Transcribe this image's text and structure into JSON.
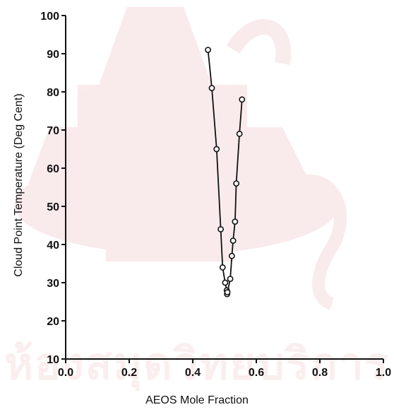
{
  "watermark": {
    "text": "ห้องสมุดวิทยบริการ"
  },
  "chart_data": {
    "type": "line",
    "title": "",
    "xlabel": "AEOS Mole Fraction",
    "ylabel": "Cloud Point Temperature (Deg Cent)",
    "xlim": [
      0.0,
      1.0
    ],
    "ylim": [
      10,
      100
    ],
    "x_ticks": [
      "0.0",
      "0.2",
      "0.4",
      "0.6",
      "0.8",
      "1.0"
    ],
    "y_ticks": [
      "10",
      "20",
      "30",
      "40",
      "50",
      "60",
      "70",
      "80",
      "90",
      "100"
    ],
    "grid": false,
    "legend": "none",
    "line_color": "#111111",
    "series": [
      {
        "points": [
          {
            "x": 0.448,
            "y": 91
          },
          {
            "x": 0.46,
            "y": 81
          },
          {
            "x": 0.475,
            "y": 65
          },
          {
            "x": 0.488,
            "y": 44
          },
          {
            "x": 0.494,
            "y": 34
          },
          {
            "x": 0.502,
            "y": 30
          },
          {
            "x": 0.507,
            "y": 28
          },
          {
            "x": 0.508,
            "y": 27
          }
        ]
      },
      {
        "points": [
          {
            "x": 0.509,
            "y": 27.5
          },
          {
            "x": 0.518,
            "y": 31
          },
          {
            "x": 0.523,
            "y": 37
          },
          {
            "x": 0.527,
            "y": 41
          },
          {
            "x": 0.533,
            "y": 46
          },
          {
            "x": 0.537,
            "y": 56
          },
          {
            "x": 0.547,
            "y": 69
          },
          {
            "x": 0.555,
            "y": 78
          }
        ]
      }
    ]
  }
}
